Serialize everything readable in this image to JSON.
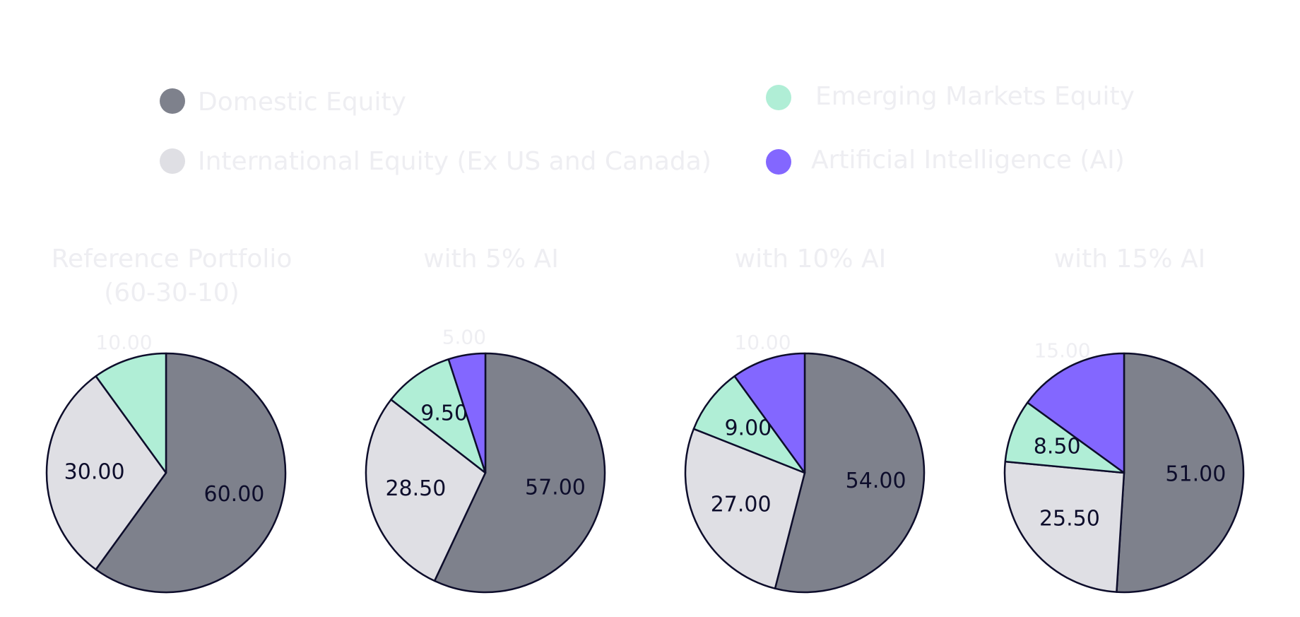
{
  "chart_data": [
    {
      "type": "pie",
      "title": [
        "Reference Portfolio",
        "(60-30-10)"
      ],
      "categories": [
        "Domestic Equity",
        "International Equity (Ex US and Canada)",
        "Emerging Markets Equity"
      ],
      "values": [
        60,
        30,
        10
      ],
      "value_labels": [
        "60.00",
        "30.00",
        "10.00"
      ],
      "textposition": [
        "inside",
        "inside",
        "outside"
      ],
      "colors": [
        "#7e818c",
        "#dfdfe4",
        "#b0eed6"
      ]
    },
    {
      "type": "pie",
      "title": [
        "with 5% AI"
      ],
      "categories": [
        "Domestic Equity",
        "International Equity (Ex US and Canada)",
        "Emerging Markets Equity",
        "Artificial Intelligence (AI)"
      ],
      "values": [
        57,
        28.5,
        9.5,
        5
      ],
      "value_labels": [
        "57.00",
        "28.50",
        "9.50",
        "5.00"
      ],
      "textposition": [
        "inside",
        "inside",
        "inside",
        "outside"
      ],
      "colors": [
        "#7e818c",
        "#dfdfe4",
        "#b0eed6",
        "#8367ff"
      ]
    },
    {
      "type": "pie",
      "title": [
        "with 10% AI"
      ],
      "categories": [
        "Domestic Equity",
        "International Equity (Ex US and Canada)",
        "Emerging Markets Equity",
        "Artificial Intelligence (AI)"
      ],
      "values": [
        54,
        27,
        9,
        10
      ],
      "value_labels": [
        "54.00",
        "27.00",
        "9.00",
        "10.00"
      ],
      "textposition": [
        "inside",
        "inside",
        "inside",
        "outside"
      ],
      "colors": [
        "#7e818c",
        "#dfdfe4",
        "#b0eed6",
        "#8367ff"
      ]
    },
    {
      "type": "pie",
      "title": [
        "with 15% AI"
      ],
      "categories": [
        "Domestic Equity",
        "International Equity (Ex US and Canada)",
        "Emerging Markets Equity",
        "Artificial Intelligence (AI)"
      ],
      "values": [
        51,
        25.5,
        8.5,
        15
      ],
      "value_labels": [
        "51.00",
        "25.50",
        "8.50",
        "15.00"
      ],
      "textposition": [
        "inside",
        "inside",
        "inside",
        "outside"
      ],
      "colors": [
        "#7e818c",
        "#dfdfe4",
        "#b0eed6",
        "#8367ff"
      ]
    }
  ]
}
